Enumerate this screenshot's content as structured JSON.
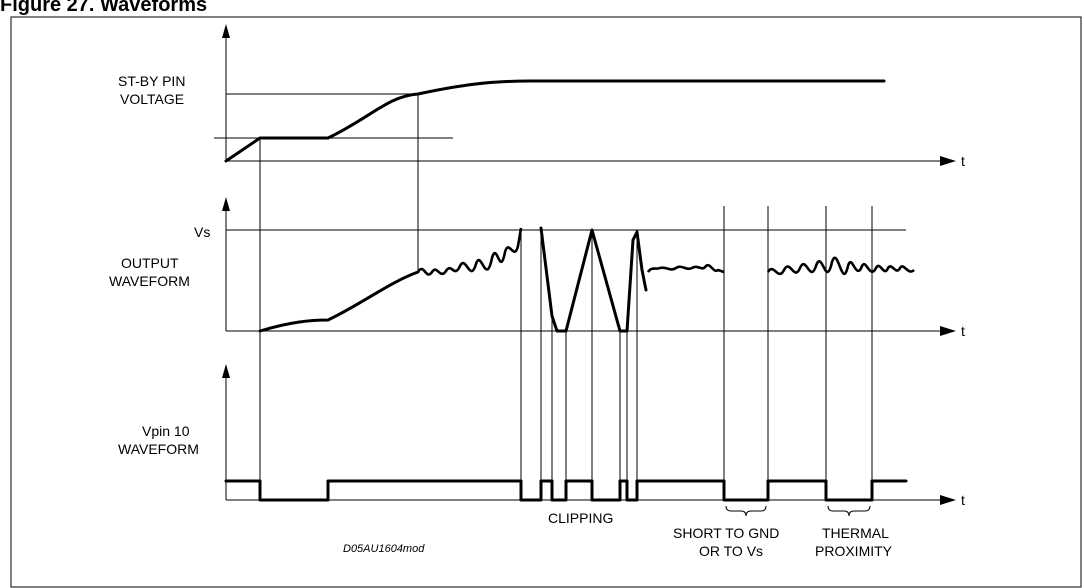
{
  "figure": {
    "title": "Figure 27.  Waveforms",
    "reference": "D05AU1604mod"
  },
  "axes": {
    "t_label": "t"
  },
  "panels": {
    "standby": {
      "label_line1": "ST-BY PIN",
      "label_line2": "VOLTAGE"
    },
    "output": {
      "vs_label": "Vs",
      "label_line1": "OUTPUT",
      "label_line2": "WAVEFORM"
    },
    "vpin": {
      "label_line1": "Vpin 10",
      "label_line2": "WAVEFORM"
    }
  },
  "events": {
    "clipping": "CLIPPING",
    "short_line1": "SHORT TO GND",
    "short_line2": "OR TO Vs",
    "thermal_line1": "THERMAL",
    "thermal_line2": "PROXIMITY"
  }
}
